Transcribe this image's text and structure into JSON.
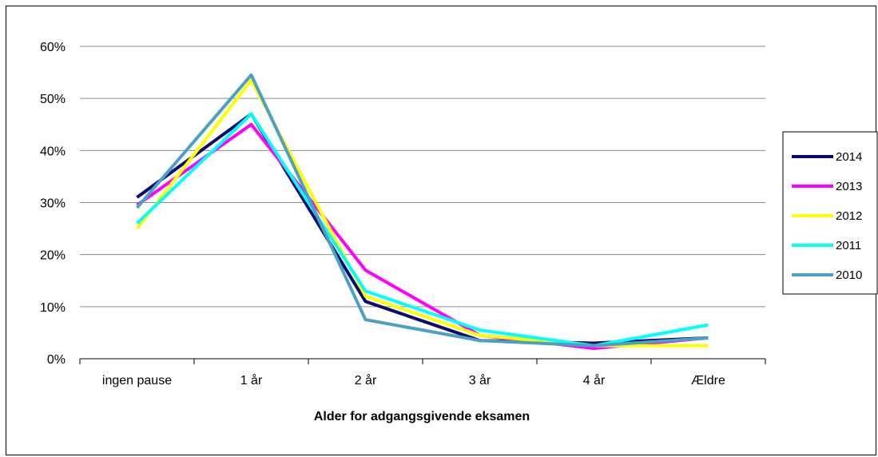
{
  "chart_data": {
    "type": "line",
    "title": "",
    "xlabel": "Alder for adgangsgivende eksamen",
    "ylabel": "",
    "categories": [
      "ingen pause",
      "1 år",
      "2 år",
      "3 år",
      "4 år",
      "Ældre"
    ],
    "ylim": [
      0,
      60
    ],
    "yticks": [
      "0%",
      "10%",
      "20%",
      "30%",
      "40%",
      "50%",
      "60%"
    ],
    "grid": true,
    "legend_position": "right",
    "series": [
      {
        "name": "2014",
        "color": "#0b0b6e",
        "values": [
          31,
          47,
          11,
          3.5,
          3,
          4
        ]
      },
      {
        "name": "2013",
        "color": "#ff00ff",
        "values": [
          29.5,
          45,
          17,
          4.5,
          2,
          4
        ]
      },
      {
        "name": "2012",
        "color": "#ffff00",
        "values": [
          25,
          53.5,
          12,
          4.5,
          2.5,
          2.5
        ]
      },
      {
        "name": "2011",
        "color": "#00ffff",
        "values": [
          26,
          47,
          13,
          5.5,
          2.5,
          6.5
        ]
      },
      {
        "name": "2010",
        "color": "#4ba1c4",
        "values": [
          29,
          54.5,
          7.5,
          3.5,
          2.5,
          4
        ]
      }
    ]
  }
}
